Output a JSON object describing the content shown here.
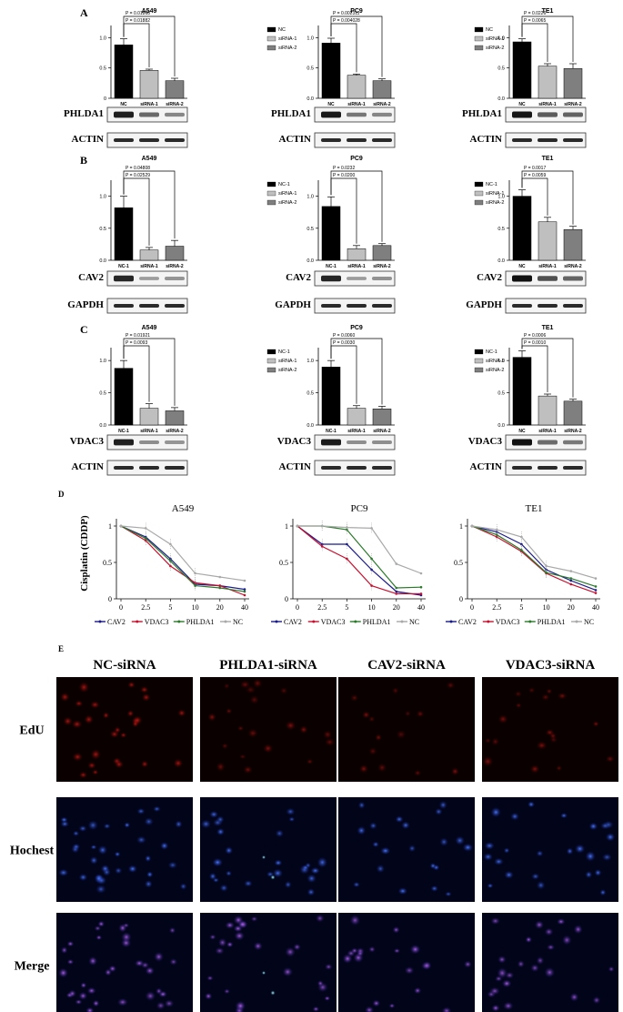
{
  "panels": {
    "A": {
      "letter": "A",
      "charts": [
        {
          "title": "A549",
          "categories": [
            "NC",
            "siRNA-1",
            "siRNA-2"
          ],
          "values": [
            0.88,
            0.46,
            0.29
          ],
          "errors": [
            0.1,
            0.02,
            0.04
          ],
          "ylim": [
            0,
            1.2
          ],
          "yticks": [
            "0",
            "0.5",
            "1.0"
          ],
          "pvalues": [
            "P = 0.01868",
            "P = 0.01882"
          ],
          "legend": [
            "NC",
            "siRNA-1",
            "siRNA-2"
          ],
          "blots": [
            "PHLDA1",
            "ACTIN"
          ]
        },
        {
          "title": "PC9",
          "categories": [
            "NC",
            "siRNA-1",
            "siRNA-2"
          ],
          "values": [
            0.91,
            0.38,
            0.29
          ],
          "errors": [
            0.08,
            0.02,
            0.03
          ],
          "ylim": [
            0,
            1.2
          ],
          "yticks": [
            "0.0",
            "0.5",
            "1.0"
          ],
          "pvalues": [
            "P = 0.002311",
            "P = 0.004028"
          ],
          "legend": [
            "NC",
            "siRNA-1",
            "siRNA-2"
          ],
          "blots": [
            "PHLDA1",
            "ACTIN"
          ]
        },
        {
          "title": "TE1",
          "categories": [
            "NC",
            "siRNA-1",
            "siRNA-2"
          ],
          "values": [
            0.93,
            0.53,
            0.49
          ],
          "errors": [
            0.05,
            0.04,
            0.08
          ],
          "ylim": [
            0,
            1.2
          ],
          "yticks": [
            "0.0",
            "0.5",
            "1.0"
          ],
          "pvalues": [
            "P = 0.0226",
            "P = 0.0065"
          ],
          "legend": [
            "NC",
            "siRNA-1",
            "siRNA-2"
          ],
          "blots": [
            "PHLDA1",
            "ACTIN"
          ]
        }
      ]
    },
    "B": {
      "letter": "B",
      "charts": [
        {
          "title": "A549",
          "categories": [
            "NC-1",
            "siRNA-1",
            "siRNA-2"
          ],
          "values": [
            0.82,
            0.16,
            0.22
          ],
          "errors": [
            0.18,
            0.04,
            0.09
          ],
          "ylim": [
            0,
            1.25
          ],
          "yticks": [
            "0.0",
            "0.5",
            "1.0"
          ],
          "pvalues": [
            "P = 0.04808",
            "P = 0.02529"
          ],
          "legend": [
            "NC-1",
            "siRNA-1",
            "siRNA-2"
          ],
          "blots": [
            "CAV2",
            "GAPDH"
          ]
        },
        {
          "title": "PC9",
          "categories": [
            "NC-1",
            "siRNA-1",
            "siRNA-2"
          ],
          "values": [
            0.84,
            0.18,
            0.23
          ],
          "errors": [
            0.15,
            0.05,
            0.03
          ],
          "ylim": [
            0,
            1.25
          ],
          "yticks": [
            "0.0",
            "0.5",
            "1.0"
          ],
          "pvalues": [
            "P = 0.0232",
            "P = 0.0200"
          ],
          "legend": [
            "NC-1",
            "siRNA-1",
            "siRNA-2"
          ],
          "blots": [
            "CAV2",
            "GAPDH"
          ]
        },
        {
          "title": "TE1",
          "categories": [
            "NC",
            "siRNA-1",
            "siRNA-2"
          ],
          "values": [
            1.0,
            0.6,
            0.48
          ],
          "errors": [
            0.1,
            0.07,
            0.05
          ],
          "ylim": [
            0,
            1.25
          ],
          "yticks": [
            "0.0",
            "0.5",
            "1.0"
          ],
          "pvalues": [
            "P = 0.0017",
            "P = 0.0059"
          ],
          "legend": [
            "NC",
            "siRNA-1",
            "siRNA-2"
          ],
          "blots": [
            "CAV2",
            "GAPDH"
          ]
        }
      ]
    },
    "C": {
      "letter": "C",
      "charts": [
        {
          "title": "A549",
          "categories": [
            "NC-1",
            "siRNA-1",
            "siRNA-2"
          ],
          "values": [
            0.88,
            0.26,
            0.22
          ],
          "errors": [
            0.12,
            0.07,
            0.05
          ],
          "ylim": [
            0,
            1.2
          ],
          "yticks": [
            "0.0",
            "0.5",
            "1.0"
          ],
          "pvalues": [
            "P = 0.01921",
            "P = 0.0093"
          ],
          "legend": [
            "NC-1",
            "siRNA-1",
            "siRNA-2"
          ],
          "blots": [
            "VDAC3",
            "ACTIN"
          ]
        },
        {
          "title": "PC9",
          "categories": [
            "NC-1",
            "siRNA-1",
            "siRNA-2"
          ],
          "values": [
            0.9,
            0.26,
            0.25
          ],
          "errors": [
            0.1,
            0.04,
            0.04
          ],
          "ylim": [
            0,
            1.2
          ],
          "yticks": [
            "0.0",
            "0.5",
            "1.0"
          ],
          "pvalues": [
            "P = 0.0060",
            "P = 0.0030"
          ],
          "legend": [
            "NC-1",
            "siRNA-1",
            "siRNA-2"
          ],
          "blots": [
            "VDAC3",
            "ACTIN"
          ]
        },
        {
          "title": "TE1",
          "categories": [
            "NC",
            "siRNA-1",
            "siRNA-2"
          ],
          "values": [
            1.05,
            0.45,
            0.37
          ],
          "errors": [
            0.1,
            0.03,
            0.03
          ],
          "ylim": [
            0,
            1.2
          ],
          "yticks": [
            "0.0",
            "0.5",
            "1.0"
          ],
          "pvalues": [
            "P = 0.0006",
            "P = 0.0010"
          ],
          "legend": [
            "NC",
            "siRNA-1",
            "siRNA-2"
          ],
          "blots": [
            "VDAC3",
            "ACTIN"
          ]
        }
      ]
    },
    "D": {
      "letter": "D",
      "ylabel": "Cisplatin (CDDP)",
      "x": [
        "0",
        "2.5",
        "5",
        "10",
        "20",
        "40"
      ],
      "yticks": [
        "0",
        "0.5",
        "1"
      ],
      "series_names": [
        "CAV2",
        "VDAC3",
        "PHLDA1",
        "NC"
      ],
      "colors": [
        "#1a1a8c",
        "#c8102e",
        "#2a7a2a",
        "#a9a9a9"
      ],
      "charts": [
        {
          "title": "A549",
          "series": [
            [
              1.0,
              0.85,
              0.55,
              0.2,
              0.18,
              0.13
            ],
            [
              1.0,
              0.8,
              0.45,
              0.22,
              0.18,
              0.05
            ],
            [
              1.0,
              0.83,
              0.52,
              0.18,
              0.15,
              0.1
            ],
            [
              1.0,
              0.97,
              0.75,
              0.35,
              0.3,
              0.25
            ]
          ]
        },
        {
          "title": "PC9",
          "series": [
            [
              1.0,
              0.75,
              0.75,
              0.4,
              0.1,
              0.05
            ],
            [
              1.0,
              0.72,
              0.55,
              0.18,
              0.07,
              0.07
            ],
            [
              1.0,
              1.0,
              0.95,
              0.55,
              0.15,
              0.16
            ],
            [
              1.0,
              1.0,
              0.98,
              0.97,
              0.48,
              0.35
            ]
          ]
        },
        {
          "title": "TE1",
          "series": [
            [
              1.0,
              0.92,
              0.75,
              0.4,
              0.25,
              0.12
            ],
            [
              1.0,
              0.85,
              0.65,
              0.35,
              0.2,
              0.08
            ],
            [
              1.0,
              0.88,
              0.67,
              0.36,
              0.28,
              0.17
            ],
            [
              1.0,
              0.95,
              0.85,
              0.45,
              0.38,
              0.28
            ]
          ]
        }
      ]
    },
    "E": {
      "letter": "E",
      "columns": [
        "NC-siRNA",
        "PHLDA1-siRNA",
        "CAV2-siRNA",
        "VDAC3-siRNA"
      ],
      "rows": [
        "EdU",
        "Hochest",
        "Merge"
      ]
    }
  }
}
